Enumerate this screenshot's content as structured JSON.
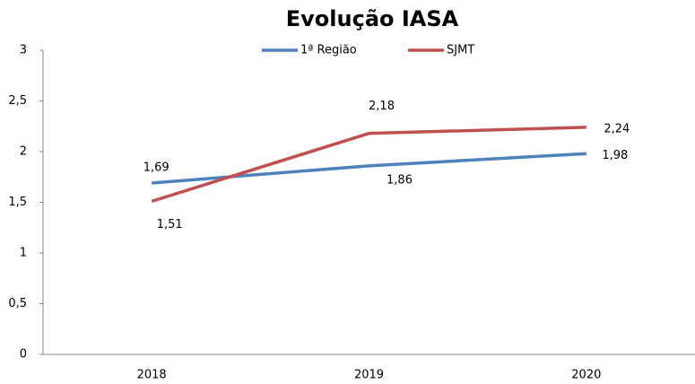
{
  "chart_data": {
    "type": "line",
    "title": "Evolução IASA",
    "categories": [
      "2018",
      "2019",
      "2020"
    ],
    "series": [
      {
        "name": "1ª Região",
        "color": "#4f81bd",
        "values": [
          1.69,
          1.86,
          1.98
        ],
        "value_labels": [
          "1,69",
          "1,86",
          "1,98"
        ]
      },
      {
        "name": "SJMT",
        "color": "#c0504d",
        "values": [
          1.51,
          2.18,
          2.24
        ],
        "value_labels": [
          "1,51",
          "2,18",
          "2,24"
        ]
      }
    ],
    "ylim": [
      0,
      3
    ],
    "yticks": [
      0,
      {
        "value": 0.5,
        "label": "0,5"
      },
      1,
      {
        "value": 1.5,
        "label": "1,5"
      },
      2,
      {
        "value": 2.5,
        "label": "2,5"
      },
      3
    ],
    "legend": "top"
  }
}
